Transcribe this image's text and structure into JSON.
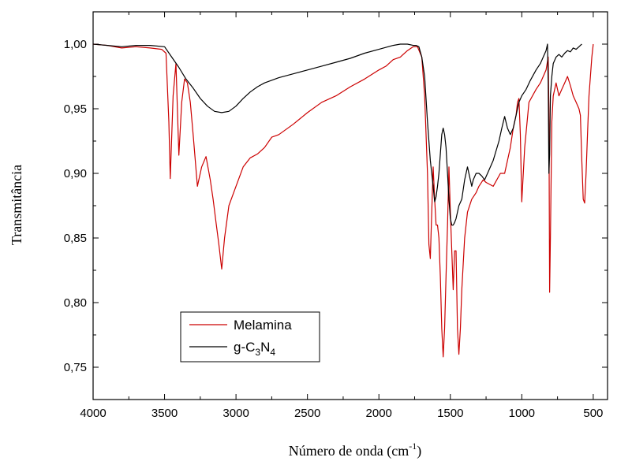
{
  "chart_data": {
    "type": "line",
    "xlabel": "Número de onda (cm",
    "xlabel_sup": "-1",
    "xlabel_close": ")",
    "ylabel": "Transmitância",
    "xlim": [
      4000,
      400
    ],
    "ylim": [
      0.725,
      1.025
    ],
    "x_reversed": true,
    "grid": false,
    "legend_position": "bottom-left",
    "x_ticks": [
      {
        "value": 4000,
        "label": "4000"
      },
      {
        "value": 3500,
        "label": "3500"
      },
      {
        "value": 3000,
        "label": "3000"
      },
      {
        "value": 2500,
        "label": "2500"
      },
      {
        "value": 2000,
        "label": "2000"
      },
      {
        "value": 1500,
        "label": "1500"
      },
      {
        "value": 1000,
        "label": "1000"
      },
      {
        "value": 500,
        "label": "500"
      }
    ],
    "y_ticks": [
      {
        "value": 1.0,
        "label": "1,00"
      },
      {
        "value": 0.95,
        "label": "0,95"
      },
      {
        "value": 0.9,
        "label": "0,90"
      },
      {
        "value": 0.85,
        "label": "0,85"
      },
      {
        "value": 0.8,
        "label": "0,80"
      },
      {
        "value": 0.75,
        "label": "0,75"
      }
    ],
    "series": [
      {
        "name": "Melamina",
        "color": "#cc0000",
        "x": [
          4000,
          3900,
          3800,
          3700,
          3600,
          3520,
          3490,
          3470,
          3460,
          3440,
          3420,
          3400,
          3380,
          3360,
          3340,
          3320,
          3300,
          3270,
          3240,
          3210,
          3180,
          3160,
          3140,
          3120,
          3100,
          3080,
          3050,
          3000,
          2950,
          2900,
          2850,
          2800,
          2750,
          2700,
          2600,
          2500,
          2400,
          2300,
          2200,
          2100,
          2000,
          1950,
          1900,
          1850,
          1800,
          1760,
          1730,
          1700,
          1680,
          1660,
          1650,
          1640,
          1630,
          1620,
          1610,
          1600,
          1590,
          1580,
          1570,
          1560,
          1550,
          1540,
          1530,
          1520,
          1510,
          1500,
          1490,
          1480,
          1470,
          1460,
          1450,
          1440,
          1430,
          1420,
          1410,
          1400,
          1380,
          1350,
          1320,
          1300,
          1270,
          1250,
          1200,
          1150,
          1120,
          1100,
          1080,
          1060,
          1040,
          1030,
          1020,
          1010,
          1000,
          980,
          950,
          900,
          870,
          850,
          830,
          815,
          810,
          805,
          800,
          790,
          780,
          770,
          760,
          750,
          740,
          720,
          700,
          680,
          660,
          640,
          620,
          600,
          590,
          580,
          570,
          560,
          550,
          540,
          530,
          520,
          510,
          500
        ],
        "y": [
          1.0,
          0.999,
          0.997,
          0.998,
          0.997,
          0.996,
          0.993,
          0.94,
          0.896,
          0.96,
          0.985,
          0.914,
          0.955,
          0.973,
          0.97,
          0.955,
          0.93,
          0.89,
          0.905,
          0.913,
          0.895,
          0.88,
          0.862,
          0.845,
          0.826,
          0.85,
          0.875,
          0.89,
          0.905,
          0.912,
          0.915,
          0.92,
          0.928,
          0.93,
          0.938,
          0.947,
          0.955,
          0.96,
          0.967,
          0.973,
          0.98,
          0.983,
          0.988,
          0.99,
          0.995,
          0.998,
          0.998,
          0.99,
          0.96,
          0.9,
          0.845,
          0.834,
          0.87,
          0.905,
          0.88,
          0.86,
          0.86,
          0.85,
          0.82,
          0.78,
          0.758,
          0.78,
          0.82,
          0.86,
          0.905,
          0.87,
          0.84,
          0.81,
          0.84,
          0.84,
          0.78,
          0.76,
          0.78,
          0.81,
          0.83,
          0.85,
          0.87,
          0.88,
          0.885,
          0.89,
          0.895,
          0.893,
          0.89,
          0.9,
          0.9,
          0.91,
          0.92,
          0.935,
          0.945,
          0.955,
          0.958,
          0.93,
          0.878,
          0.92,
          0.955,
          0.965,
          0.97,
          0.975,
          0.98,
          0.99,
          0.95,
          0.808,
          0.85,
          0.94,
          0.96,
          0.965,
          0.97,
          0.965,
          0.96,
          0.965,
          0.97,
          0.975,
          0.968,
          0.96,
          0.955,
          0.95,
          0.945,
          0.91,
          0.88,
          0.877,
          0.9,
          0.93,
          0.96,
          0.975,
          0.99,
          1.0
        ]
      },
      {
        "name": "g-C3N4",
        "color": "#000000",
        "x": [
          4000,
          3900,
          3800,
          3700,
          3600,
          3500,
          3450,
          3400,
          3350,
          3300,
          3250,
          3200,
          3150,
          3100,
          3050,
          3000,
          2950,
          2900,
          2850,
          2800,
          2700,
          2600,
          2500,
          2400,
          2300,
          2200,
          2100,
          2000,
          1900,
          1850,
          1800,
          1760,
          1740,
          1720,
          1700,
          1680,
          1660,
          1640,
          1620,
          1610,
          1600,
          1590,
          1580,
          1570,
          1560,
          1550,
          1540,
          1530,
          1520,
          1510,
          1500,
          1490,
          1480,
          1470,
          1460,
          1450,
          1440,
          1420,
          1400,
          1380,
          1370,
          1360,
          1350,
          1340,
          1320,
          1300,
          1280,
          1260,
          1240,
          1200,
          1160,
          1140,
          1120,
          1100,
          1080,
          1060,
          1040,
          1020,
          1000,
          970,
          940,
          900,
          870,
          850,
          830,
          820,
          815,
          810,
          805,
          800,
          790,
          780,
          760,
          740,
          720,
          700,
          680,
          660,
          640,
          620,
          600,
          590,
          580
        ],
        "y": [
          1.0,
          0.999,
          0.998,
          0.999,
          0.999,
          0.998,
          0.99,
          0.982,
          0.973,
          0.966,
          0.958,
          0.952,
          0.948,
          0.947,
          0.948,
          0.952,
          0.958,
          0.963,
          0.967,
          0.97,
          0.974,
          0.977,
          0.98,
          0.983,
          0.986,
          0.989,
          0.993,
          0.996,
          0.999,
          1.0,
          1.0,
          0.999,
          0.999,
          0.998,
          0.99,
          0.975,
          0.94,
          0.91,
          0.89,
          0.878,
          0.882,
          0.89,
          0.9,
          0.915,
          0.93,
          0.935,
          0.93,
          0.92,
          0.9,
          0.88,
          0.865,
          0.86,
          0.86,
          0.862,
          0.865,
          0.87,
          0.875,
          0.88,
          0.895,
          0.905,
          0.9,
          0.895,
          0.89,
          0.895,
          0.9,
          0.9,
          0.898,
          0.895,
          0.9,
          0.91,
          0.925,
          0.935,
          0.944,
          0.935,
          0.93,
          0.935,
          0.945,
          0.955,
          0.96,
          0.965,
          0.972,
          0.98,
          0.985,
          0.99,
          0.995,
          1.0,
          0.97,
          0.9,
          0.915,
          0.96,
          0.975,
          0.985,
          0.99,
          0.992,
          0.99,
          0.993,
          0.995,
          0.994,
          0.997,
          0.996,
          0.998,
          0.999,
          1.0
        ]
      }
    ],
    "legend": [
      {
        "label": "Melamina",
        "color": "#cc0000"
      },
      {
        "label_main": "g-C",
        "sub1": "3",
        "label_mid": "N",
        "sub2": "4",
        "color": "#000000"
      }
    ]
  }
}
